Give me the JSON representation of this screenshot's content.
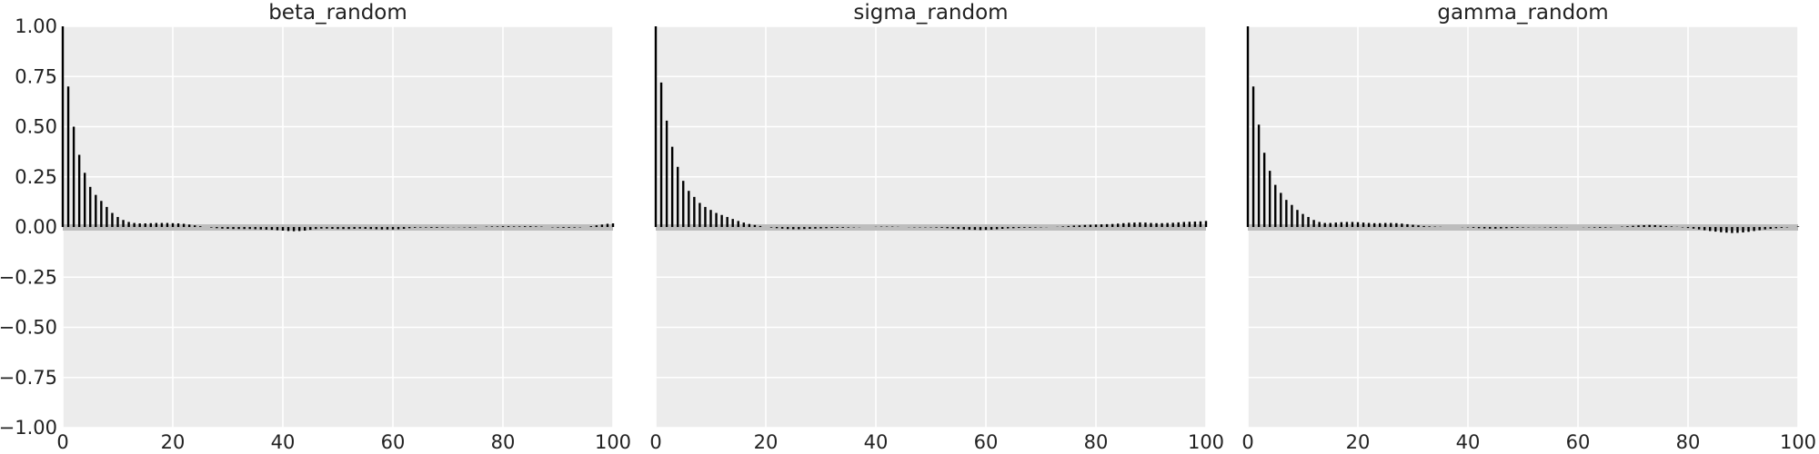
{
  "chart_data": [
    {
      "type": "bar",
      "title": "beta_random",
      "xlim": [
        0,
        100
      ],
      "ylim": [
        -1,
        1
      ],
      "xticks": [
        "0",
        "20",
        "40",
        "60",
        "80",
        "100"
      ],
      "yticks": [
        "1.00",
        "0.75",
        "0.50",
        "0.25",
        "0.00",
        "−0.25",
        "−0.50",
        "−0.75",
        "−1.00"
      ],
      "x": [
        0,
        1,
        2,
        3,
        4,
        5,
        6,
        7,
        8,
        9,
        10,
        11,
        12,
        13,
        14,
        15,
        16,
        17,
        18,
        19,
        20,
        21,
        22,
        23,
        24,
        25,
        26,
        27,
        28,
        29,
        30,
        31,
        32,
        33,
        34,
        35,
        36,
        37,
        38,
        39,
        40,
        41,
        42,
        43,
        44,
        45,
        46,
        47,
        48,
        49,
        50,
        51,
        52,
        53,
        54,
        55,
        56,
        57,
        58,
        59,
        60,
        61,
        62,
        63,
        64,
        65,
        66,
        67,
        68,
        69,
        70,
        71,
        72,
        73,
        74,
        75,
        76,
        77,
        78,
        79,
        80,
        81,
        82,
        83,
        84,
        85,
        86,
        87,
        88,
        89,
        90,
        91,
        92,
        93,
        94,
        95,
        96,
        97,
        98,
        99,
        100
      ],
      "values": [
        1.0,
        0.7,
        0.5,
        0.36,
        0.27,
        0.2,
        0.16,
        0.13,
        0.1,
        0.07,
        0.05,
        0.035,
        0.025,
        0.02,
        0.018,
        0.018,
        0.019,
        0.02,
        0.02,
        0.02,
        0.019,
        0.018,
        0.016,
        0.012,
        0.008,
        0.004,
        0.0,
        -0.003,
        -0.006,
        -0.008,
        -0.009,
        -0.01,
        -0.01,
        -0.01,
        -0.01,
        -0.011,
        -0.012,
        -0.013,
        -0.014,
        -0.016,
        -0.018,
        -0.02,
        -0.021,
        -0.02,
        -0.018,
        -0.014,
        -0.01,
        -0.008,
        -0.008,
        -0.009,
        -0.01,
        -0.01,
        -0.01,
        -0.009,
        -0.008,
        -0.009,
        -0.01,
        -0.011,
        -0.012,
        -0.012,
        -0.012,
        -0.011,
        -0.009,
        -0.006,
        -0.004,
        -0.003,
        -0.003,
        -0.004,
        -0.004,
        -0.003,
        -0.002,
        -0.001,
        -0.001,
        -0.002,
        -0.003,
        -0.002,
        0.0,
        0.002,
        0.003,
        0.003,
        0.004,
        0.004,
        0.003,
        0.003,
        0.004,
        0.004,
        0.003,
        0.002,
        0.0,
        -0.002,
        -0.003,
        -0.004,
        -0.004,
        -0.003,
        -0.002,
        0.0,
        0.004,
        0.008,
        0.012,
        0.016,
        0.018
      ]
    },
    {
      "type": "bar",
      "title": "sigma_random",
      "xlim": [
        0,
        100
      ],
      "ylim": [
        -1,
        1
      ],
      "xticks": [
        "0",
        "20",
        "40",
        "60",
        "80",
        "100"
      ],
      "x": [
        0,
        1,
        2,
        3,
        4,
        5,
        6,
        7,
        8,
        9,
        10,
        11,
        12,
        13,
        14,
        15,
        16,
        17,
        18,
        19,
        20,
        21,
        22,
        23,
        24,
        25,
        26,
        27,
        28,
        29,
        30,
        31,
        32,
        33,
        34,
        35,
        36,
        37,
        38,
        39,
        40,
        41,
        42,
        43,
        44,
        45,
        46,
        47,
        48,
        49,
        50,
        51,
        52,
        53,
        54,
        55,
        56,
        57,
        58,
        59,
        60,
        61,
        62,
        63,
        64,
        65,
        66,
        67,
        68,
        69,
        70,
        71,
        72,
        73,
        74,
        75,
        76,
        77,
        78,
        79,
        80,
        81,
        82,
        83,
        84,
        85,
        86,
        87,
        88,
        89,
        90,
        91,
        92,
        93,
        94,
        95,
        96,
        97,
        98,
        99,
        100
      ],
      "values": [
        1.0,
        0.72,
        0.53,
        0.4,
        0.3,
        0.23,
        0.18,
        0.15,
        0.12,
        0.1,
        0.085,
        0.07,
        0.06,
        0.05,
        0.04,
        0.03,
        0.022,
        0.015,
        0.01,
        0.005,
        0.0,
        -0.003,
        -0.006,
        -0.008,
        -0.01,
        -0.011,
        -0.011,
        -0.01,
        -0.009,
        -0.008,
        -0.007,
        -0.006,
        -0.005,
        -0.004,
        -0.004,
        -0.003,
        -0.002,
        -0.001,
        0.0,
        0.0,
        0.001,
        0.002,
        0.002,
        0.002,
        0.001,
        0.0,
        -0.001,
        -0.002,
        -0.002,
        -0.002,
        -0.002,
        -0.003,
        -0.004,
        -0.006,
        -0.008,
        -0.01,
        -0.012,
        -0.013,
        -0.014,
        -0.015,
        -0.014,
        -0.013,
        -0.011,
        -0.009,
        -0.007,
        -0.006,
        -0.005,
        -0.004,
        -0.004,
        -0.003,
        -0.002,
        -0.001,
        0.0,
        0.001,
        0.003,
        0.005,
        0.007,
        0.008,
        0.01,
        0.011,
        0.012,
        0.013,
        0.014,
        0.015,
        0.017,
        0.019,
        0.021,
        0.022,
        0.023,
        0.022,
        0.02,
        0.019,
        0.019,
        0.02,
        0.021,
        0.023,
        0.025,
        0.026,
        0.027,
        0.028,
        0.03
      ]
    },
    {
      "type": "bar",
      "title": "gamma_random",
      "xlim": [
        0,
        100
      ],
      "ylim": [
        -1,
        1
      ],
      "xticks": [
        "0",
        "20",
        "40",
        "60",
        "80",
        "100"
      ],
      "x": [
        0,
        1,
        2,
        3,
        4,
        5,
        6,
        7,
        8,
        9,
        10,
        11,
        12,
        13,
        14,
        15,
        16,
        17,
        18,
        19,
        20,
        21,
        22,
        23,
        24,
        25,
        26,
        27,
        28,
        29,
        30,
        31,
        32,
        33,
        34,
        35,
        36,
        37,
        38,
        39,
        40,
        41,
        42,
        43,
        44,
        45,
        46,
        47,
        48,
        49,
        50,
        51,
        52,
        53,
        54,
        55,
        56,
        57,
        58,
        59,
        60,
        61,
        62,
        63,
        64,
        65,
        66,
        67,
        68,
        69,
        70,
        71,
        72,
        73,
        74,
        75,
        76,
        77,
        78,
        79,
        80,
        81,
        82,
        83,
        84,
        85,
        86,
        87,
        88,
        89,
        90,
        91,
        92,
        93,
        94,
        95,
        96,
        97,
        98,
        99,
        100
      ],
      "values": [
        1.0,
        0.7,
        0.51,
        0.37,
        0.28,
        0.21,
        0.17,
        0.135,
        0.11,
        0.085,
        0.065,
        0.05,
        0.035,
        0.025,
        0.02,
        0.02,
        0.022,
        0.024,
        0.025,
        0.025,
        0.024,
        0.022,
        0.02,
        0.019,
        0.019,
        0.02,
        0.02,
        0.019,
        0.017,
        0.014,
        0.011,
        0.008,
        0.005,
        0.003,
        0.002,
        0.001,
        0.0,
        0.0,
        0.0,
        -0.001,
        -0.002,
        -0.004,
        -0.006,
        -0.007,
        -0.008,
        -0.008,
        -0.007,
        -0.006,
        -0.005,
        -0.004,
        -0.003,
        -0.002,
        -0.001,
        -0.001,
        -0.002,
        -0.003,
        -0.003,
        -0.002,
        -0.001,
        0.0,
        0.0,
        -0.001,
        -0.002,
        -0.003,
        -0.004,
        -0.003,
        -0.002,
        0.0,
        0.002,
        0.004,
        0.006,
        0.008,
        0.009,
        0.01,
        0.009,
        0.007,
        0.005,
        0.003,
        0.001,
        -0.002,
        -0.005,
        -0.008,
        -0.012,
        -0.016,
        -0.02,
        -0.023,
        -0.026,
        -0.028,
        -0.03,
        -0.029,
        -0.027,
        -0.024,
        -0.02,
        -0.016,
        -0.012,
        -0.009,
        -0.006,
        -0.004,
        -0.002,
        0.0,
        0.003
      ]
    }
  ]
}
